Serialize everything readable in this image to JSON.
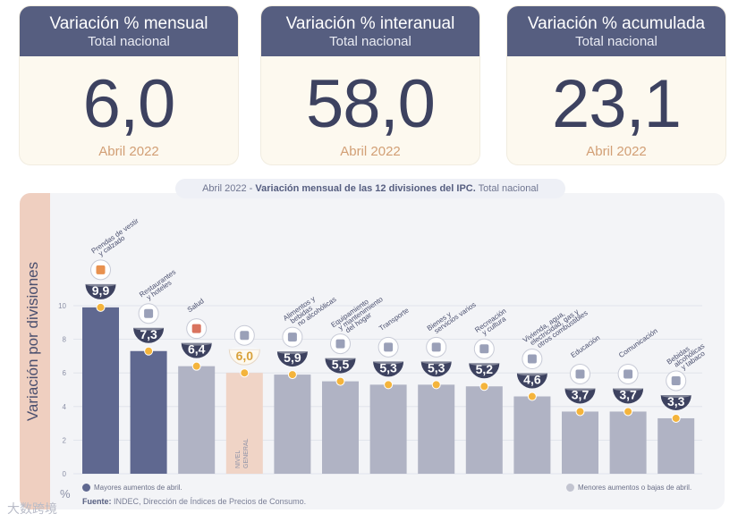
{
  "cards": [
    {
      "title": "Variación % mensual",
      "subtitle": "Total nacional",
      "value": "6,0",
      "date": "Abril 2022"
    },
    {
      "title": "Variación % interanual",
      "subtitle": "Total nacional",
      "value": "58,0",
      "date": "Abril 2022"
    },
    {
      "title": "Variación % acumulada",
      "subtitle": "Total nacional",
      "value": "23,1",
      "date": "Abril 2022"
    }
  ],
  "chart_title": {
    "date": "Abril 2022",
    "sep": " - ",
    "main": "Variación mensual de las 12 divisiones del IPC.",
    "suffix": " Total nacional"
  },
  "ylabel": "Variación por divisiones",
  "pct_symbol": "%",
  "legend": {
    "high": "Mayores aumentos de abril.",
    "low": "Menores aumentos o bajas de abril."
  },
  "source": {
    "label": "Fuente:",
    "text": " INDEC, Dirección de Índices de Precios de Consumo."
  },
  "watermark": "大数跨境",
  "colors": {
    "high": "#5f6890",
    "low": "#b0b3c4",
    "general": "#f0d4c6",
    "dot": "#f4b43c",
    "badge": "#3d4260"
  },
  "chart_data": {
    "type": "bar",
    "title": "Variación mensual de las 12 divisiones del IPC. Total nacional",
    "ylabel": "Variación por divisiones",
    "yunit": "%",
    "ylim": [
      0,
      10
    ],
    "yticks": [
      0,
      2,
      4,
      6,
      8,
      10
    ],
    "categories": [
      [
        "Prendas de vestir",
        "y calzado"
      ],
      [
        "Restaurantes",
        "y hoteles"
      ],
      [
        "Salud"
      ],
      [
        "Nivel general"
      ],
      [
        "Alimentos y",
        "bebidas",
        "no alcohólicas"
      ],
      [
        "Equipamiento",
        "y mantenimiento",
        "del hogar"
      ],
      [
        "Transporte"
      ],
      [
        "Bienes y",
        "servicios varios"
      ],
      [
        "Recreación",
        "y cultura"
      ],
      [
        "Vivienda, agua,",
        "electricidad, gas y",
        "otros combustibles"
      ],
      [
        "Educación"
      ],
      [
        "Comunicación"
      ],
      [
        "Bebidas",
        "alcohólicas",
        "y tabaco"
      ]
    ],
    "values": [
      9.9,
      7.3,
      6.4,
      6.0,
      5.9,
      5.5,
      5.3,
      5.3,
      5.2,
      4.6,
      3.7,
      3.7,
      3.3
    ],
    "value_labels": [
      "9,9",
      "7,3",
      "6,4",
      "6,0",
      "5,9",
      "5,5",
      "5,3",
      "5,3",
      "5,2",
      "4,6",
      "3,7",
      "3,7",
      "3,3"
    ],
    "groups": [
      "high",
      "high",
      "low",
      "general",
      "low",
      "low",
      "low",
      "low",
      "low",
      "low",
      "low",
      "low",
      "low"
    ],
    "general_bar_label": [
      "NIVEL",
      "GENERAL"
    ],
    "icons": [
      "shirt-icon",
      "fork-knife-icon",
      "medical-cross-icon",
      "basket-icon",
      "food-icon",
      "home-appliance-icon",
      "bus-icon",
      "comb-icon",
      "umbrella-icon",
      "lightbulb-icon",
      "notebook-icon",
      "phone-icon",
      "bottle-icon"
    ]
  }
}
